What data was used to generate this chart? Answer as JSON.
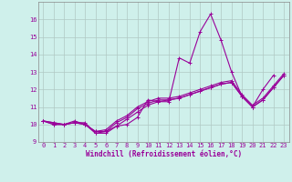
{
  "series": [
    [
      10.2,
      10.0,
      10.0,
      10.1,
      10.1,
      9.5,
      9.5,
      9.9,
      10.0,
      10.4,
      11.4,
      11.3,
      11.3,
      13.8,
      13.5,
      15.3,
      16.3,
      14.8,
      13.0,
      11.6,
      11.0,
      12.0,
      12.8,
      null
    ],
    [
      10.2,
      10.0,
      10.0,
      10.1,
      10.0,
      9.5,
      9.6,
      9.9,
      10.3,
      10.7,
      11.1,
      11.3,
      11.4,
      11.5,
      11.7,
      11.9,
      12.1,
      12.3,
      12.4,
      11.6,
      11.0,
      11.4,
      12.1,
      12.8
    ],
    [
      10.2,
      10.1,
      10.0,
      10.1,
      10.0,
      9.6,
      9.6,
      10.1,
      10.4,
      10.9,
      11.2,
      11.4,
      11.4,
      11.5,
      11.7,
      11.9,
      12.1,
      12.3,
      12.4,
      11.6,
      11.0,
      11.4,
      12.1,
      12.8
    ],
    [
      10.2,
      10.1,
      10.0,
      10.2,
      10.0,
      9.6,
      9.7,
      10.2,
      10.5,
      11.0,
      11.3,
      11.5,
      11.5,
      11.6,
      11.8,
      12.0,
      12.2,
      12.4,
      12.5,
      11.7,
      11.1,
      11.5,
      12.2,
      12.9
    ]
  ],
  "x": [
    0,
    1,
    2,
    3,
    4,
    5,
    6,
    7,
    8,
    9,
    10,
    11,
    12,
    13,
    14,
    15,
    16,
    17,
    18,
    19,
    20,
    21,
    22,
    23
  ],
  "line_color": "#990099",
  "marker": "+",
  "markersize": 3,
  "linewidth": 0.8,
  "bg_color": "#cff0eb",
  "grid_color": "#b0c8c4",
  "text_color": "#990099",
  "xlabel": "Windchill (Refroidissement éolien,°C)",
  "ylim": [
    9,
    17
  ],
  "xlim": [
    -0.5,
    23.5
  ],
  "yticks": [
    9,
    10,
    11,
    12,
    13,
    14,
    15,
    16
  ],
  "xticks": [
    0,
    1,
    2,
    3,
    4,
    5,
    6,
    7,
    8,
    9,
    10,
    11,
    12,
    13,
    14,
    15,
    16,
    17,
    18,
    19,
    20,
    21,
    22,
    23
  ],
  "tick_fontsize": 5.0,
  "xlabel_fontsize": 5.5
}
